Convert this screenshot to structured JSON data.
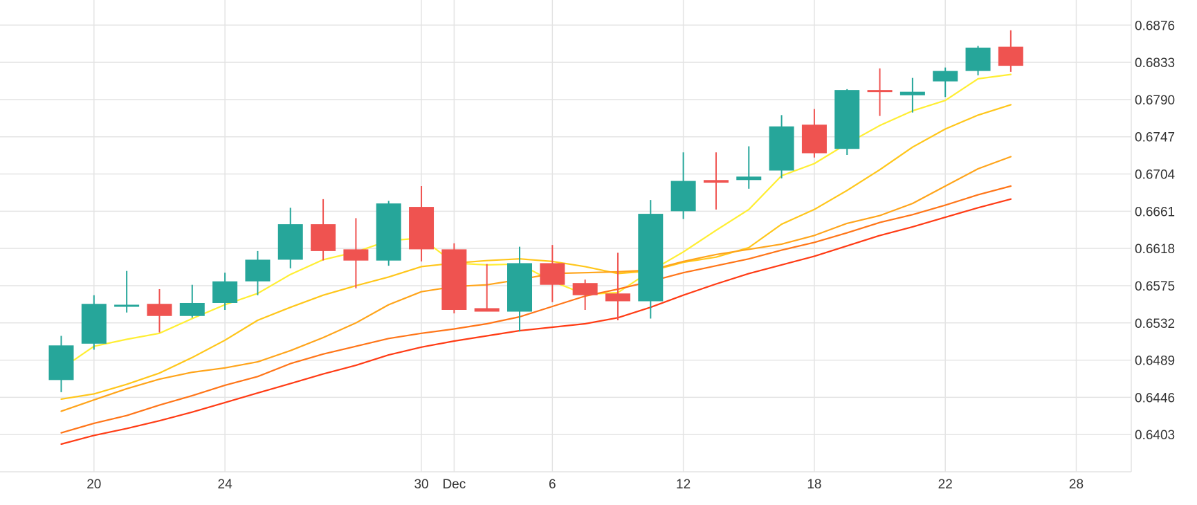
{
  "chart_data": {
    "type": "candlestick",
    "x_ticks": [
      {
        "x": 20,
        "label": "20"
      },
      {
        "x": 24,
        "label": "24"
      },
      {
        "x": 30,
        "label": "30"
      },
      {
        "x": 31,
        "label": "Dec"
      },
      {
        "x": 34,
        "label": "6"
      },
      {
        "x": 38,
        "label": "12"
      },
      {
        "x": 42,
        "label": "18"
      },
      {
        "x": 46,
        "label": "22"
      },
      {
        "x": 50,
        "label": "28"
      }
    ],
    "y_ticks": [
      "0.6876",
      "0.6833",
      "0.6790",
      "0.6747",
      "0.6704",
      "0.6661",
      "0.6618",
      "0.6575",
      "0.6532",
      "0.6489",
      "0.6446",
      "0.6403"
    ],
    "ylim": [
      0.636,
      0.6905
    ],
    "xlim": [
      17.13,
      51.68
    ],
    "grid": true,
    "up_color": "#26a69a",
    "down_color": "#ef5350",
    "candles": [
      {
        "x": 19,
        "open": 0.6466,
        "high": 0.6517,
        "low": 0.6452,
        "close": 0.6506
      },
      {
        "x": 20,
        "open": 0.6508,
        "high": 0.6564,
        "low": 0.6501,
        "close": 0.6554
      },
      {
        "x": 21,
        "open": 0.6553,
        "high": 0.6592,
        "low": 0.6544,
        "close": 0.6553
      },
      {
        "x": 22,
        "open": 0.6554,
        "high": 0.6571,
        "low": 0.6521,
        "close": 0.654
      },
      {
        "x": 23,
        "open": 0.654,
        "high": 0.6576,
        "low": 0.6538,
        "close": 0.6555
      },
      {
        "x": 24,
        "open": 0.6555,
        "high": 0.659,
        "low": 0.6547,
        "close": 0.658
      },
      {
        "x": 25,
        "open": 0.658,
        "high": 0.6615,
        "low": 0.6564,
        "close": 0.6605
      },
      {
        "x": 26,
        "open": 0.6605,
        "high": 0.6665,
        "low": 0.6595,
        "close": 0.6646
      },
      {
        "x": 27,
        "open": 0.6646,
        "high": 0.6675,
        "low": 0.6604,
        "close": 0.6615
      },
      {
        "x": 28,
        "open": 0.6617,
        "high": 0.6653,
        "low": 0.6572,
        "close": 0.6604
      },
      {
        "x": 29,
        "open": 0.6604,
        "high": 0.6673,
        "low": 0.6598,
        "close": 0.667
      },
      {
        "x": 30,
        "open": 0.6666,
        "high": 0.669,
        "low": 0.6603,
        "close": 0.6617
      },
      {
        "x": 31,
        "open": 0.6617,
        "high": 0.6624,
        "low": 0.6543,
        "close": 0.6547
      },
      {
        "x": 32,
        "open": 0.6549,
        "high": 0.66,
        "low": 0.6545,
        "close": 0.6545
      },
      {
        "x": 33,
        "open": 0.6545,
        "high": 0.662,
        "low": 0.6522,
        "close": 0.6601
      },
      {
        "x": 34,
        "open": 0.6601,
        "high": 0.6622,
        "low": 0.6556,
        "close": 0.6576
      },
      {
        "x": 35,
        "open": 0.6578,
        "high": 0.6582,
        "low": 0.6547,
        "close": 0.6564
      },
      {
        "x": 36,
        "open": 0.6566,
        "high": 0.6613,
        "low": 0.6535,
        "close": 0.6557
      },
      {
        "x": 37,
        "open": 0.6557,
        "high": 0.6674,
        "low": 0.6537,
        "close": 0.6658
      },
      {
        "x": 38,
        "open": 0.6661,
        "high": 0.6729,
        "low": 0.6652,
        "close": 0.6696
      },
      {
        "x": 39,
        "open": 0.6697,
        "high": 0.6729,
        "low": 0.6663,
        "close": 0.6694
      },
      {
        "x": 40,
        "open": 0.6697,
        "high": 0.6736,
        "low": 0.6687,
        "close": 0.6701
      },
      {
        "x": 41,
        "open": 0.6708,
        "high": 0.6772,
        "low": 0.6699,
        "close": 0.6759
      },
      {
        "x": 42,
        "open": 0.6761,
        "high": 0.6779,
        "low": 0.6723,
        "close": 0.6728
      },
      {
        "x": 43,
        "open": 0.6733,
        "high": 0.6802,
        "low": 0.6726,
        "close": 0.6801
      },
      {
        "x": 44,
        "open": 0.6801,
        "high": 0.6826,
        "low": 0.6771,
        "close": 0.6799
      },
      {
        "x": 45,
        "open": 0.6795,
        "high": 0.6815,
        "low": 0.6775,
        "close": 0.6799
      },
      {
        "x": 46,
        "open": 0.6811,
        "high": 0.6827,
        "low": 0.6793,
        "close": 0.6823
      },
      {
        "x": 47,
        "open": 0.6823,
        "high": 0.6852,
        "low": 0.6818,
        "close": 0.685
      },
      {
        "x": 48,
        "open": 0.6851,
        "high": 0.687,
        "low": 0.6822,
        "close": 0.6829
      }
    ],
    "moving_averages": [
      {
        "color": "#ffee33",
        "points": [
          [
            19,
            0.6479
          ],
          [
            20,
            0.6505
          ],
          [
            21,
            0.6513
          ],
          [
            22,
            0.652
          ],
          [
            23,
            0.6537
          ],
          [
            24,
            0.6553
          ],
          [
            25,
            0.6566
          ],
          [
            26,
            0.6588
          ],
          [
            27,
            0.6605
          ],
          [
            28,
            0.6614
          ],
          [
            29,
            0.6627
          ],
          [
            30,
            0.663
          ],
          [
            31,
            0.6601
          ],
          [
            32,
            0.6599
          ],
          [
            33,
            0.66
          ],
          [
            34,
            0.658
          ],
          [
            35,
            0.6565
          ],
          [
            36,
            0.6567
          ],
          [
            37,
            0.6592
          ],
          [
            38,
            0.6614
          ],
          [
            39,
            0.6639
          ],
          [
            40,
            0.6663
          ],
          [
            41,
            0.6702
          ],
          [
            42,
            0.6716
          ],
          [
            43,
            0.6739
          ],
          [
            44,
            0.676
          ],
          [
            45,
            0.6777
          ],
          [
            46,
            0.6789
          ],
          [
            47,
            0.6814
          ],
          [
            48,
            0.6819
          ]
        ]
      },
      {
        "color": "#ffc61a",
        "points": [
          [
            19,
            0.6444
          ],
          [
            20,
            0.645
          ],
          [
            21,
            0.6461
          ],
          [
            22,
            0.6474
          ],
          [
            23,
            0.6492
          ],
          [
            24,
            0.6512
          ],
          [
            25,
            0.6535
          ],
          [
            26,
            0.655
          ],
          [
            27,
            0.6564
          ],
          [
            28,
            0.6575
          ],
          [
            29,
            0.6585
          ],
          [
            30,
            0.6597
          ],
          [
            31,
            0.6601
          ],
          [
            32,
            0.6604
          ],
          [
            33,
            0.6606
          ],
          [
            34,
            0.6603
          ],
          [
            35,
            0.6597
          ],
          [
            36,
            0.6589
          ],
          [
            37,
            0.6592
          ],
          [
            38,
            0.6602
          ],
          [
            39,
            0.6608
          ],
          [
            40,
            0.6619
          ],
          [
            41,
            0.6646
          ],
          [
            42,
            0.6663
          ],
          [
            43,
            0.6685
          ],
          [
            44,
            0.6709
          ],
          [
            45,
            0.6735
          ],
          [
            46,
            0.6756
          ],
          [
            47,
            0.6772
          ],
          [
            48,
            0.6784
          ]
        ]
      },
      {
        "color": "#ffa41a",
        "points": [
          [
            19,
            0.643
          ],
          [
            20,
            0.6443
          ],
          [
            21,
            0.6456
          ],
          [
            22,
            0.6467
          ],
          [
            23,
            0.6475
          ],
          [
            24,
            0.648
          ],
          [
            25,
            0.6487
          ],
          [
            26,
            0.65
          ],
          [
            27,
            0.6515
          ],
          [
            28,
            0.6532
          ],
          [
            29,
            0.6553
          ],
          [
            30,
            0.6568
          ],
          [
            31,
            0.6574
          ],
          [
            32,
            0.6576
          ],
          [
            33,
            0.6582
          ],
          [
            34,
            0.6589
          ],
          [
            35,
            0.659
          ],
          [
            36,
            0.6591
          ],
          [
            37,
            0.6593
          ],
          [
            38,
            0.6603
          ],
          [
            39,
            0.6611
          ],
          [
            40,
            0.6617
          ],
          [
            41,
            0.6623
          ],
          [
            42,
            0.6633
          ],
          [
            43,
            0.6647
          ],
          [
            44,
            0.6656
          ],
          [
            45,
            0.667
          ],
          [
            46,
            0.669
          ],
          [
            47,
            0.671
          ],
          [
            48,
            0.6724
          ]
        ]
      },
      {
        "color": "#ff7518",
        "points": [
          [
            19,
            0.6405
          ],
          [
            20,
            0.6416
          ],
          [
            21,
            0.6425
          ],
          [
            22,
            0.6437
          ],
          [
            23,
            0.6448
          ],
          [
            24,
            0.646
          ],
          [
            25,
            0.647
          ],
          [
            26,
            0.6485
          ],
          [
            27,
            0.6496
          ],
          [
            28,
            0.6505
          ],
          [
            29,
            0.6514
          ],
          [
            30,
            0.652
          ],
          [
            31,
            0.6525
          ],
          [
            32,
            0.6531
          ],
          [
            33,
            0.6539
          ],
          [
            34,
            0.6551
          ],
          [
            35,
            0.6563
          ],
          [
            36,
            0.6571
          ],
          [
            37,
            0.658
          ],
          [
            38,
            0.659
          ],
          [
            39,
            0.6598
          ],
          [
            40,
            0.6606
          ],
          [
            41,
            0.6616
          ],
          [
            42,
            0.6625
          ],
          [
            43,
            0.6636
          ],
          [
            44,
            0.6648
          ],
          [
            45,
            0.6657
          ],
          [
            46,
            0.6668
          ],
          [
            47,
            0.668
          ],
          [
            48,
            0.669
          ]
        ]
      },
      {
        "color": "#ff3b14",
        "points": [
          [
            19,
            0.6392
          ],
          [
            20,
            0.6402
          ],
          [
            21,
            0.641
          ],
          [
            22,
            0.6419
          ],
          [
            23,
            0.6429
          ],
          [
            24,
            0.644
          ],
          [
            25,
            0.6451
          ],
          [
            26,
            0.6462
          ],
          [
            27,
            0.6473
          ],
          [
            28,
            0.6483
          ],
          [
            29,
            0.6495
          ],
          [
            30,
            0.6504
          ],
          [
            31,
            0.6511
          ],
          [
            32,
            0.6517
          ],
          [
            33,
            0.6523
          ],
          [
            34,
            0.6527
          ],
          [
            35,
            0.6531
          ],
          [
            36,
            0.6538
          ],
          [
            37,
            0.655
          ],
          [
            38,
            0.6564
          ],
          [
            39,
            0.6577
          ],
          [
            40,
            0.6589
          ],
          [
            41,
            0.6599
          ],
          [
            42,
            0.6609
          ],
          [
            43,
            0.6621
          ],
          [
            44,
            0.6633
          ],
          [
            45,
            0.6643
          ],
          [
            46,
            0.6654
          ],
          [
            47,
            0.6665
          ],
          [
            48,
            0.6675
          ]
        ]
      }
    ]
  }
}
